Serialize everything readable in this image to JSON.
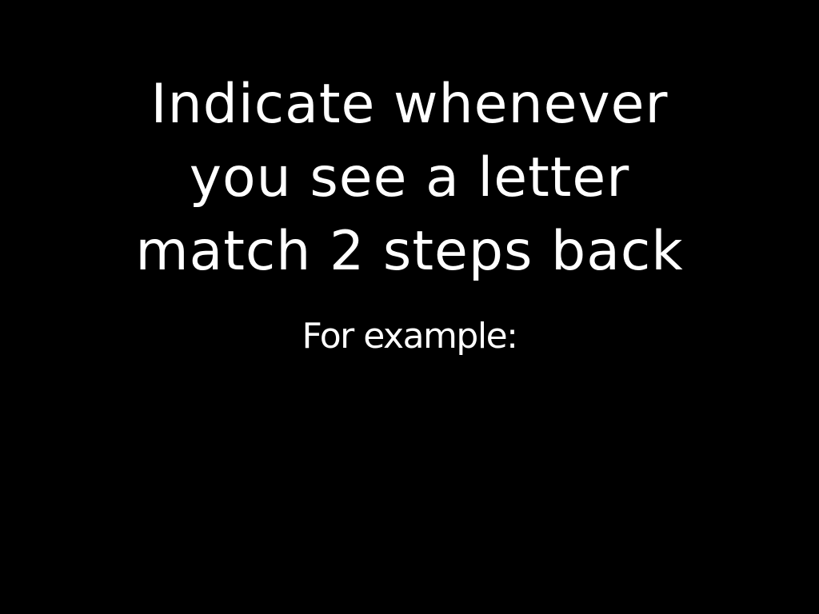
{
  "colors": {
    "background": "#000000",
    "text": "#ffffff"
  },
  "instruction": {
    "lines": [
      "Indicate whenever",
      "you see a letter",
      "match 2 steps back"
    ]
  },
  "example_label": "For example:"
}
